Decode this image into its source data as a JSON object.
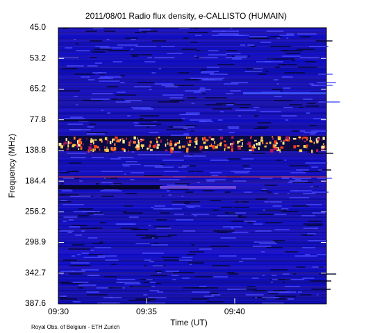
{
  "chart_data": {
    "type": "spectrogram",
    "title": "2011/08/01  Radio flux density, e-CALLISTO (HUMAIN)",
    "x_label": "Time (UT)",
    "y_label": "Frequency (MHz)",
    "credit": "Royal Obs. of Belgium - ETH Zurich",
    "xlim": [
      "09:30:00",
      "09:45:12"
    ],
    "xticks": [
      "09:30",
      "09:35",
      "09:40"
    ],
    "yticks": [
      {
        "value": 45,
        "label": "45.0"
      },
      {
        "value": 53.2,
        "label": "53.2"
      },
      {
        "value": 65.2,
        "label": "65.2"
      },
      {
        "value": 77.8,
        "label": "77.8"
      },
      {
        "value": 138.8,
        "label": "138.8"
      },
      {
        "value": 184.4,
        "label": "184.4"
      },
      {
        "value": 256.2,
        "label": "256.2"
      },
      {
        "value": 298.9,
        "label": "298.9"
      },
      {
        "value": 342.7,
        "label": "342.7"
      },
      {
        "value": 387.6,
        "label": "387.6"
      }
    ]
  }
}
